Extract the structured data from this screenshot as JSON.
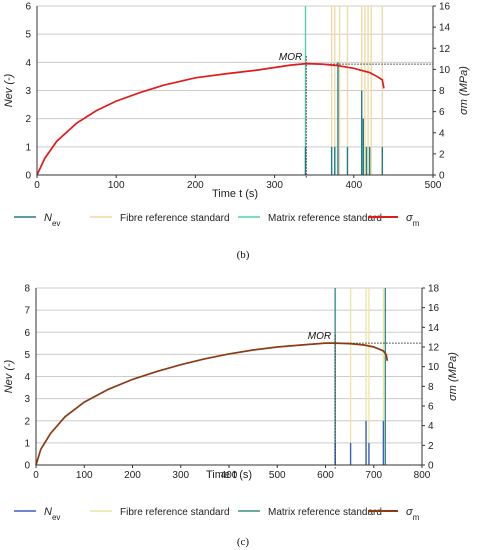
{
  "colors": {
    "nev_b": "#1f7f86",
    "fibre": "#f0d9a2",
    "matrix_b": "#4fd1b0",
    "sigma_b": "#e01b1b",
    "nev_c": "#3b5fc4",
    "fibre_c": "#ece6a3",
    "matrix_c": "#3c8f85",
    "sigma_c": "#8b3a14",
    "grid": "#cccccc",
    "axis": "#333333"
  },
  "chart_data": [
    {
      "type": "line",
      "panel_label": "(b)",
      "xlabel": "Time t (s)",
      "ylabel_left": "Nev (-)",
      "ylabel_right": "σm (MPa)",
      "xlim": [
        0,
        500
      ],
      "ylim_left": [
        0,
        6
      ],
      "ylim_right": [
        0,
        16
      ],
      "x_ticks": [
        0,
        100,
        200,
        300,
        400,
        500
      ],
      "y_left_ticks": [
        0,
        1,
        2,
        3,
        4,
        5,
        6
      ],
      "y_right_ticks": [
        0,
        2,
        4,
        6,
        8,
        10,
        12,
        14,
        16
      ],
      "grid": true,
      "annotation": {
        "text": "MOR",
        "x": 340,
        "y_right": 10.5
      },
      "legend": [
        {
          "label_main": "N",
          "label_sub": "ev",
          "key": "nev",
          "italic": true
        },
        {
          "label_main": "Fibre reference standard",
          "label_sub": "",
          "key": "fibre",
          "italic": false
        },
        {
          "label_main": "Matrix reference standard",
          "label_sub": "",
          "key": "matrix",
          "italic": false
        },
        {
          "label_main": "σ",
          "label_sub": "m",
          "key": "sigma",
          "italic": true
        }
      ],
      "sigma_series": {
        "name": "σm",
        "x": [
          0,
          10,
          25,
          50,
          75,
          100,
          130,
          160,
          200,
          240,
          280,
          320,
          340,
          360,
          380,
          400,
          420,
          430,
          436,
          438
        ],
        "y": [
          0,
          1.6,
          3.2,
          4.9,
          6.1,
          7.0,
          7.8,
          8.5,
          9.2,
          9.6,
          9.95,
          10.4,
          10.55,
          10.5,
          10.35,
          10.1,
          9.7,
          9.3,
          9.0,
          8.2
        ]
      },
      "fibre_lines_x": [
        372,
        376,
        382,
        392,
        410,
        414,
        418,
        422,
        436
      ],
      "matrix_lines": [
        {
          "x": 339,
          "n": 6
        }
      ],
      "nev_events": [
        {
          "x": 339,
          "n": 1
        },
        {
          "x": 372,
          "n": 1
        },
        {
          "x": 376,
          "n": 1
        },
        {
          "x": 380,
          "n": 4
        },
        {
          "x": 392,
          "n": 1
        },
        {
          "x": 410,
          "n": 3
        },
        {
          "x": 412,
          "n": 2
        },
        {
          "x": 416,
          "n": 1
        },
        {
          "x": 420,
          "n": 1
        },
        {
          "x": 436,
          "n": 1
        }
      ]
    },
    {
      "type": "line",
      "panel_label": "(c)",
      "xlabel": "Time t (s)",
      "ylabel_left": "Nev (-)",
      "ylabel_right": "σm (MPa)",
      "xlim": [
        0,
        800
      ],
      "ylim_left": [
        0,
        8
      ],
      "ylim_right": [
        0,
        18
      ],
      "x_ticks": [
        0,
        100,
        200,
        300,
        400,
        500,
        600,
        700,
        800
      ],
      "y_left_ticks": [
        0,
        1,
        2,
        3,
        4,
        5,
        6,
        7,
        8
      ],
      "y_right_ticks": [
        0,
        2,
        4,
        6,
        8,
        10,
        12,
        14,
        16,
        18
      ],
      "grid": true,
      "annotation": {
        "text": "MOR",
        "x": 620,
        "y_right": 12.4
      },
      "legend": [
        {
          "label_main": "N",
          "label_sub": "ev",
          "key": "nev",
          "italic": true
        },
        {
          "label_main": "Fibre reference standard",
          "label_sub": "",
          "key": "fibre",
          "italic": false
        },
        {
          "label_main": "Matrix reference standard",
          "label_sub": "",
          "key": "matrix",
          "italic": false
        },
        {
          "label_main": "σ",
          "label_sub": "m",
          "key": "sigma",
          "italic": true
        }
      ],
      "sigma_series": {
        "name": "σm",
        "x": [
          0,
          10,
          30,
          60,
          100,
          150,
          200,
          250,
          300,
          350,
          400,
          450,
          500,
          550,
          600,
          620,
          650,
          680,
          700,
          720,
          726,
          728
        ],
        "y": [
          0,
          1.6,
          3.2,
          4.9,
          6.4,
          7.7,
          8.7,
          9.5,
          10.2,
          10.8,
          11.3,
          11.7,
          12.0,
          12.2,
          12.4,
          12.4,
          12.35,
          12.2,
          12.0,
          11.6,
          11.2,
          10.6
        ]
      },
      "fibre_lines_x": [
        652,
        684,
        690,
        720
      ],
      "matrix_lines": [
        {
          "x": 620,
          "n": 8
        },
        {
          "x": 724,
          "n": 8
        }
      ],
      "nev_events": [
        {
          "x": 620,
          "n": 1
        },
        {
          "x": 652,
          "n": 1
        },
        {
          "x": 684,
          "n": 2
        },
        {
          "x": 690,
          "n": 1
        },
        {
          "x": 720,
          "n": 2
        }
      ]
    }
  ]
}
